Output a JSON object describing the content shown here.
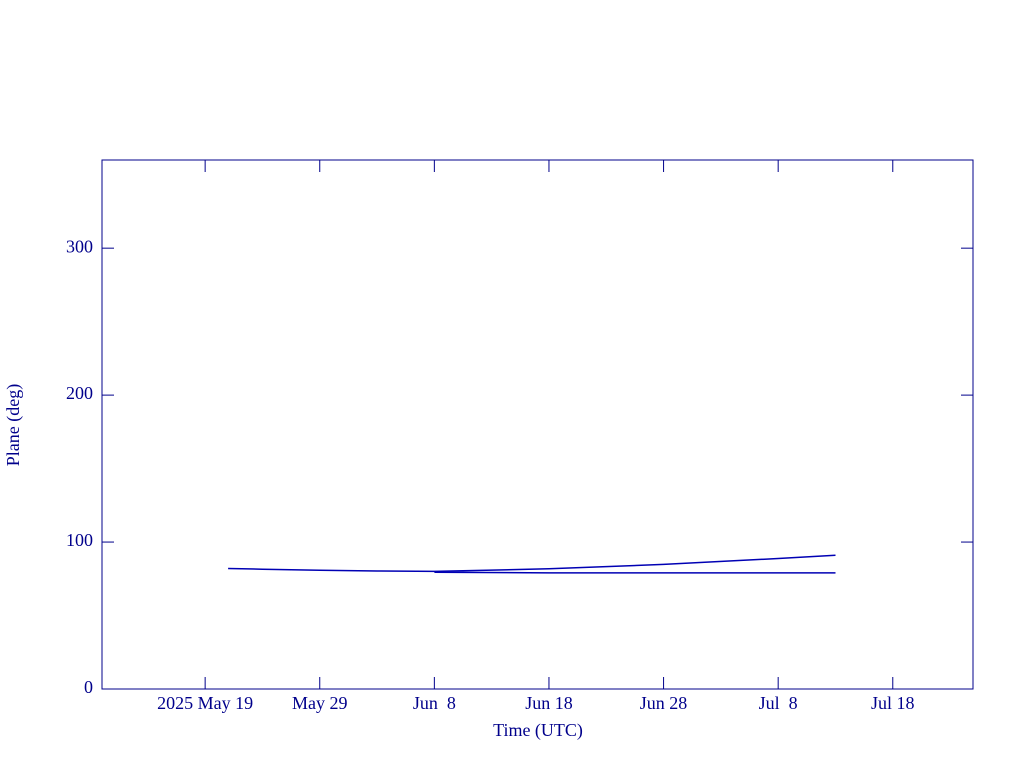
{
  "chart_data": {
    "type": "line",
    "xlabel": "Time (UTC)",
    "ylabel": "Plane (deg)",
    "xlim": [
      "2025-05-10",
      "2025-07-25"
    ],
    "ylim": [
      0,
      360
    ],
    "xticks": [
      {
        "value": "2025-05-19",
        "label": "2025 May 19"
      },
      {
        "value": "2025-05-29",
        "label": "May 29"
      },
      {
        "value": "2025-06-08",
        "label": "Jun  8"
      },
      {
        "value": "2025-06-18",
        "label": "Jun 18"
      },
      {
        "value": "2025-06-28",
        "label": "Jun 28"
      },
      {
        "value": "2025-07-08",
        "label": "Jul  8"
      },
      {
        "value": "2025-07-18",
        "label": "Jul 18"
      }
    ],
    "yticks": [
      0,
      100,
      200,
      300
    ],
    "series": [
      {
        "color": "#0000b4",
        "x": [
          "2025-05-21",
          "2025-05-24",
          "2025-05-29",
          "2025-06-03",
          "2025-06-08",
          "2025-06-18",
          "2025-06-28",
          "2025-07-08",
          "2025-07-13"
        ],
        "values": [
          82,
          81.5,
          80.8,
          80.3,
          80,
          81.8,
          84.8,
          88.8,
          91
        ]
      },
      {
        "color": "#0000b4",
        "x": [
          "2025-06-08",
          "2025-06-18",
          "2025-06-28",
          "2025-07-13"
        ],
        "values": [
          79.5,
          79,
          79,
          79
        ]
      }
    ]
  }
}
